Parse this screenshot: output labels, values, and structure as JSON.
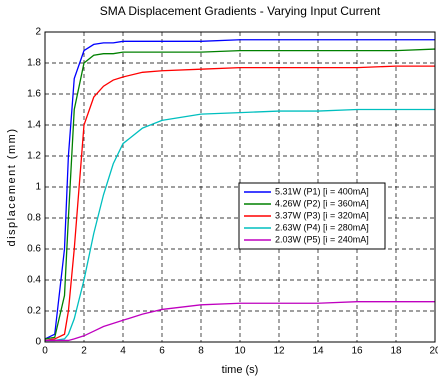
{
  "chart_data": {
    "type": "line",
    "title": "SMA Displacement Gradients - Varying Input Current",
    "x_label": "time (s)",
    "y_label": "displacement (mm)",
    "x": [
      0,
      0.5,
      1,
      1.2,
      1.5,
      2,
      2.5,
      3,
      3.5,
      4,
      5,
      6,
      8,
      10,
      12,
      14,
      16,
      18,
      20
    ],
    "series": [
      {
        "name": "5.31W (P1) [i = 400mA]",
        "color": "#0000ff",
        "values": [
          0.02,
          0.05,
          0.6,
          1.2,
          1.7,
          1.88,
          1.92,
          1.93,
          1.93,
          1.94,
          1.94,
          1.94,
          1.94,
          1.95,
          1.95,
          1.95,
          1.95,
          1.95,
          1.95
        ]
      },
      {
        "name": "4.26W (P2) [i = 360mA]",
        "color": "#008000",
        "values": [
          0.02,
          0.03,
          0.3,
          0.8,
          1.5,
          1.8,
          1.85,
          1.86,
          1.86,
          1.87,
          1.87,
          1.87,
          1.87,
          1.88,
          1.88,
          1.88,
          1.88,
          1.88,
          1.89
        ]
      },
      {
        "name": "3.37W (P3) [i = 320mA]",
        "color": "#ff0000",
        "values": [
          0.01,
          0.02,
          0.05,
          0.2,
          0.6,
          1.4,
          1.58,
          1.65,
          1.69,
          1.71,
          1.74,
          1.75,
          1.76,
          1.77,
          1.77,
          1.77,
          1.77,
          1.78,
          1.78
        ]
      },
      {
        "name": "2.63W (P4) [i = 280mA]",
        "color": "#00bfbf",
        "values": [
          0.01,
          0.01,
          0.02,
          0.05,
          0.15,
          0.4,
          0.7,
          0.95,
          1.15,
          1.28,
          1.38,
          1.43,
          1.47,
          1.48,
          1.49,
          1.49,
          1.5,
          1.5,
          1.5
        ]
      },
      {
        "name": "2.03W (P5) [i = 240mA]",
        "color": "#bf00bf",
        "values": [
          0.01,
          0.01,
          0.01,
          0.01,
          0.02,
          0.04,
          0.07,
          0.1,
          0.12,
          0.14,
          0.18,
          0.21,
          0.24,
          0.25,
          0.25,
          0.25,
          0.26,
          0.26,
          0.26
        ]
      }
    ],
    "xlim": [
      0,
      20
    ],
    "xticks": [
      0,
      2,
      4,
      6,
      8,
      10,
      12,
      14,
      16,
      18,
      20
    ],
    "ylim": [
      0,
      2
    ],
    "yticks": [
      0,
      0.2,
      0.4,
      0.6,
      0.8,
      1,
      1.2,
      1.4,
      1.6,
      1.8,
      2
    ],
    "grid": true,
    "legend": "right"
  }
}
